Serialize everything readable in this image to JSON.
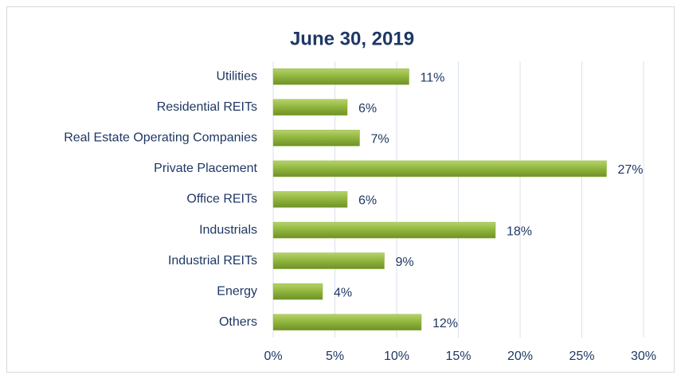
{
  "chart_data": {
    "type": "hbar",
    "title": "June 30, 2019",
    "categories": [
      "Utilities",
      "Residential REITs",
      "Real Estate Operating Companies",
      "Private Placement",
      "Office REITs",
      "Industrials",
      "Industrial REITs",
      "Energy",
      "Others"
    ],
    "values": [
      11,
      6,
      7,
      27,
      6,
      18,
      9,
      4,
      12
    ],
    "value_labels": [
      "11%",
      "6%",
      "7%",
      "27%",
      "6%",
      "18%",
      "9%",
      "4%",
      "12%"
    ],
    "color": "#8fb43c",
    "xlim": [
      0,
      30
    ],
    "xticks": [
      {
        "value": 0,
        "label": "0%"
      },
      {
        "value": 5,
        "label": "5%"
      },
      {
        "value": 10,
        "label": "10%"
      },
      {
        "value": 15,
        "label": "15%"
      },
      {
        "value": 20,
        "label": "20%"
      },
      {
        "value": 25,
        "label": "25%"
      },
      {
        "value": 30,
        "label": "30%"
      }
    ],
    "grid": true
  }
}
